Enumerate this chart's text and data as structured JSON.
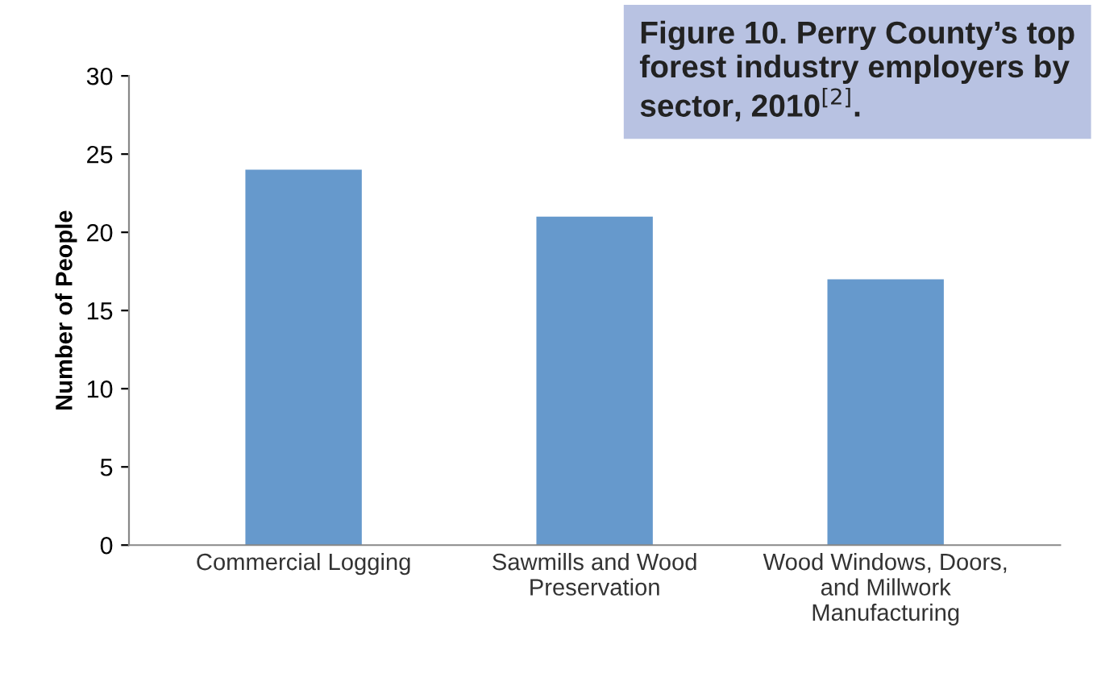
{
  "chart_data": {
    "type": "bar",
    "title": "Figure 10. Perry County’s top forest industry employers by sector, 2010$^{[2]}$.",
    "ylabel": "Number of People",
    "categories": [
      "Commercial Logging",
      "Sawmills and Wood\nPreservation",
      "Wood Windows, Doors,\nand Millwork\nManufacturing"
    ],
    "values": [
      24,
      21,
      17
    ],
    "color": "#6699cc",
    "ylim": [
      0,
      30
    ],
    "yticks": [
      0,
      5,
      10,
      15,
      20,
      25,
      30
    ],
    "grid": false,
    "legend": false
  }
}
